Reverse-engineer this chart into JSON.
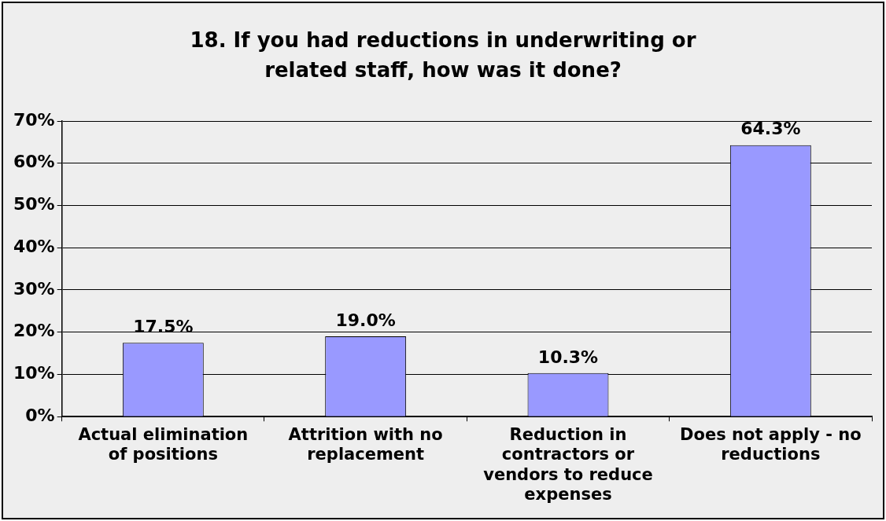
{
  "chart_data": {
    "type": "bar",
    "title": "18. If you had reductions in underwriting or related staff, how was it done?",
    "categories": [
      "Actual elimination of positions",
      "Attrition with no replacement",
      "Reduction in contractors or vendors to reduce expenses",
      "Does not apply - no reductions"
    ],
    "values": [
      17.5,
      19.0,
      10.3,
      64.3
    ],
    "value_labels": [
      "17.5%",
      "19.0%",
      "10.3%",
      "64.3%"
    ],
    "color": "#9999ff",
    "ylim": [
      0,
      70
    ],
    "yticks": [
      {
        "value": 0,
        "label": "0%"
      },
      {
        "value": 10,
        "label": "10%"
      },
      {
        "value": 20,
        "label": "20%"
      },
      {
        "value": 30,
        "label": "30%"
      },
      {
        "value": 40,
        "label": "40%"
      },
      {
        "value": 50,
        "label": "50%"
      },
      {
        "value": 60,
        "label": "60%"
      },
      {
        "value": 70,
        "label": "70%"
      }
    ],
    "grid": "y",
    "legend": false
  }
}
